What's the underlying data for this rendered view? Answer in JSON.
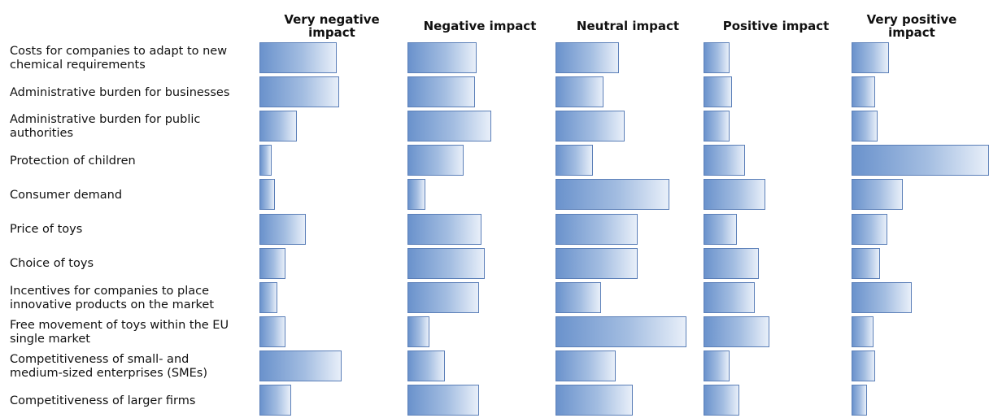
{
  "chart_data": {
    "type": "bar",
    "columns": [
      "Very negative\nimpact",
      "Negative impact",
      "Neutral impact",
      "Positive impact",
      "Very positive\nimpact"
    ],
    "categories": [
      "Costs for companies to adapt to new\nchemical requirements",
      "Administrative burden for businesses",
      "Administrative burden for public\nauthorities",
      "Protection of children",
      "Consumer demand",
      "Price of toys",
      "Choice of toys",
      "Incentives for companies to place\ninnovative products on the market",
      "Free movement of toys within the EU\nsingle market",
      "Competitiveness of small- and\nmedium-sized enterprises (SMEs)",
      "Competitiveness of larger firms"
    ],
    "series": [
      {
        "values": [
          56,
          58,
          27,
          9,
          11,
          34,
          19,
          13,
          19,
          60,
          23
        ]
      },
      {
        "values": [
          50,
          49,
          61,
          41,
          13,
          54,
          56,
          52,
          16,
          27,
          52
        ]
      },
      {
        "values": [
          46,
          35,
          50,
          27,
          83,
          60,
          60,
          33,
          95,
          44,
          56
        ]
      },
      {
        "values": [
          19,
          21,
          19,
          30,
          45,
          24,
          40,
          37,
          48,
          19,
          26
        ]
      },
      {
        "values": [
          27,
          17,
          19,
          100,
          37,
          26,
          21,
          44,
          16,
          17,
          11
        ]
      }
    ],
    "ylim": [
      0,
      100
    ],
    "colors": {
      "bar_start": "#6a92cc",
      "bar_mid": "#a3bde1",
      "bar_end": "#e8eff9",
      "bar_border": "#5b7fb8"
    }
  }
}
